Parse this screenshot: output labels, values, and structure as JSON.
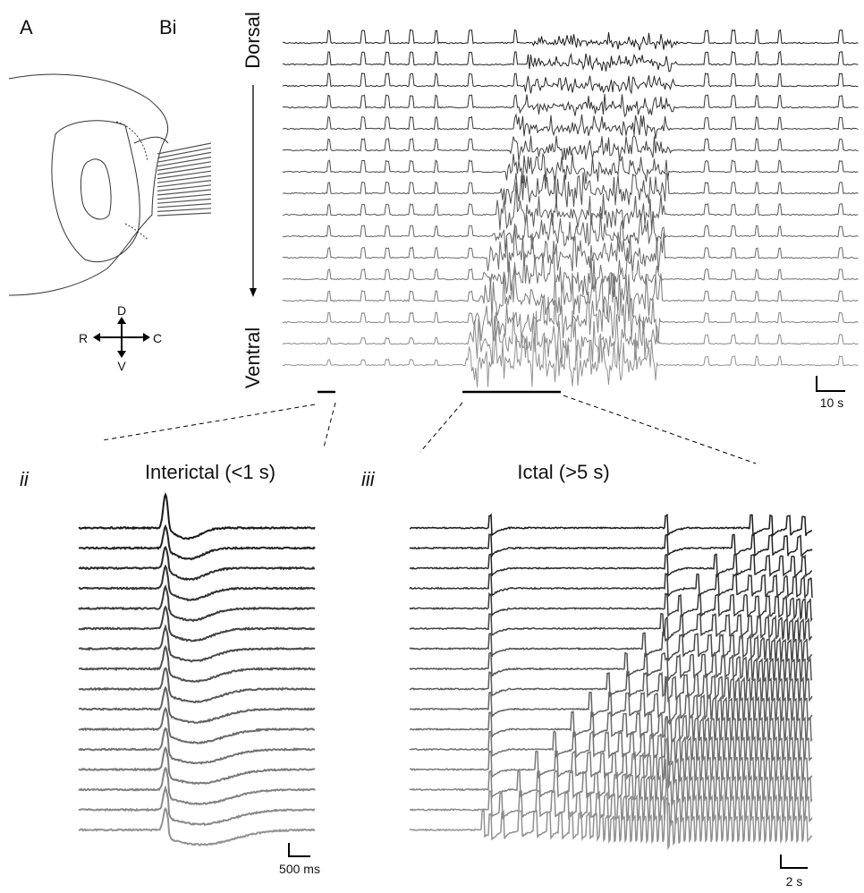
{
  "panel_a": {
    "label": "A",
    "compass": {
      "up": "D",
      "down": "V",
      "left": "R",
      "right": "C"
    }
  },
  "panel_bi": {
    "label": "Bi",
    "axis_top": "Dorsal",
    "axis_bottom": "Ventral",
    "scale_bar": "10 s"
  },
  "panel_ii": {
    "label": "ii",
    "title": "Interictal (<1 s)",
    "scale_bar": "500 ms"
  },
  "panel_iii": {
    "label": "iii",
    "title": "Ictal (>5 s)",
    "scale_bar": "2 s"
  }
}
